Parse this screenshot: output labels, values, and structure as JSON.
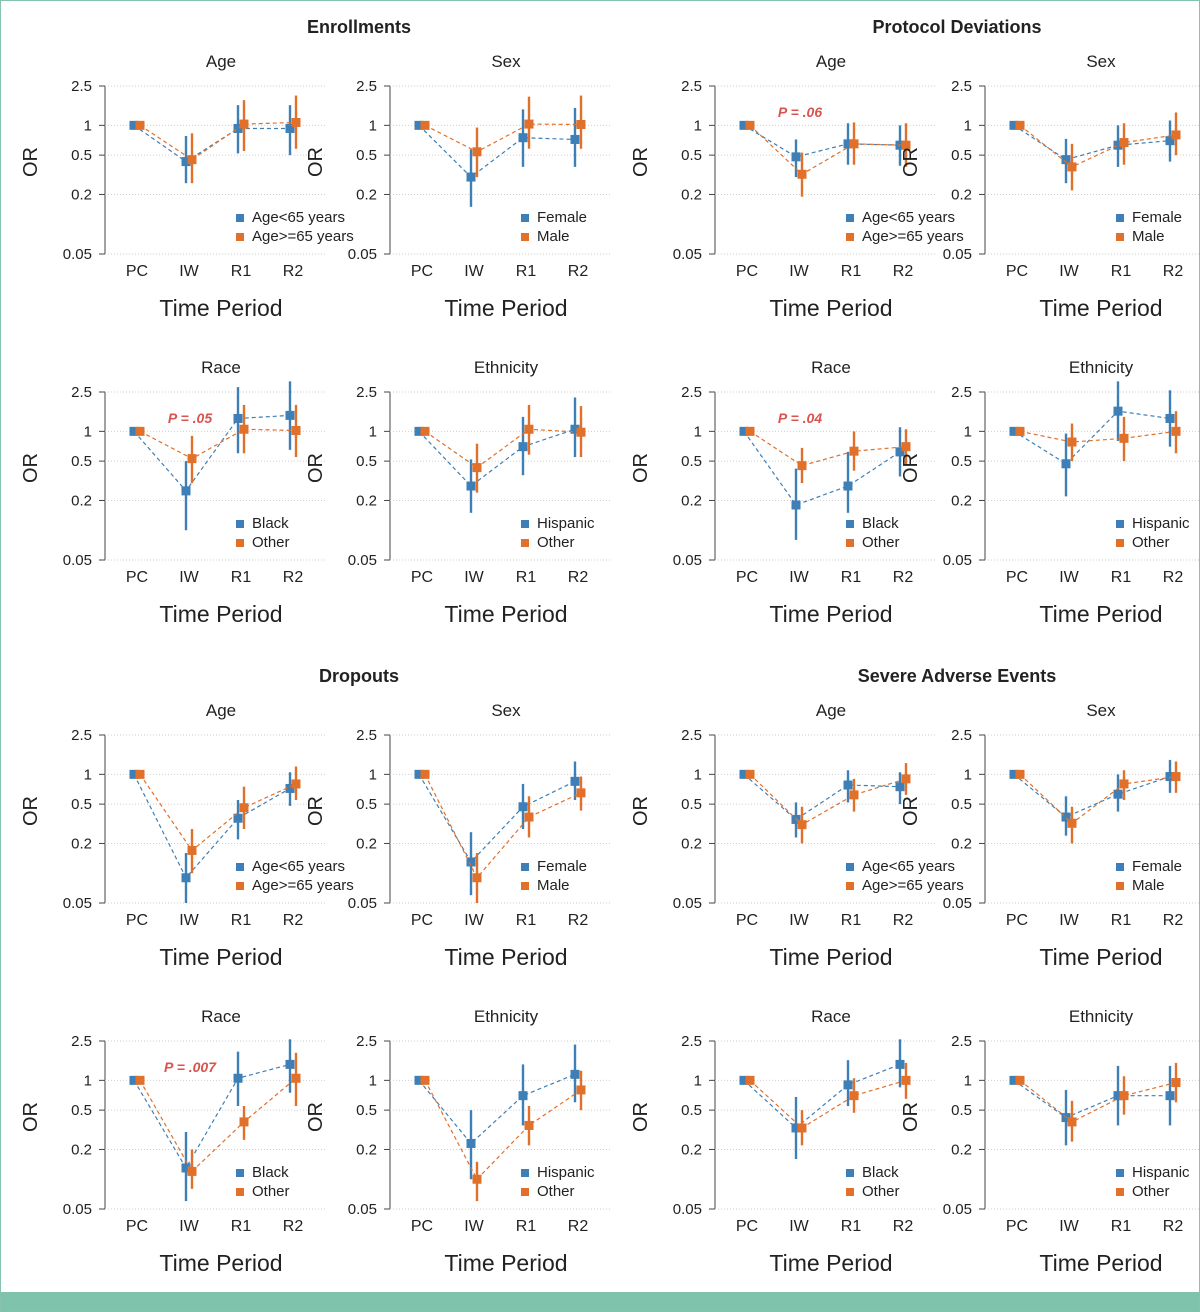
{
  "colors": {
    "series1": "#3d7fb6",
    "series2": "#e0702a",
    "pvalue": "#d9534f",
    "axis": "#444444",
    "grid": "#cfcfcf",
    "frame": "#86c2ae",
    "bottom_bar": "#7fc3ad"
  },
  "axis_text": {
    "ylabel": "OR",
    "xlabel": "Time Period",
    "yticks": [
      "2.5",
      "1",
      "0.5",
      "0.2",
      "0.05"
    ],
    "ytick_values": [
      2.5,
      1,
      0.5,
      0.2,
      0.05
    ],
    "xticks": [
      "PC",
      "IW",
      "R1",
      "R2"
    ]
  },
  "section_titles": [
    "Enrollments",
    "Protocol Deviations",
    "Dropouts",
    "Severe Adverse Events"
  ],
  "chart_data": [
    {
      "type": "scatter",
      "section": "Enrollments",
      "title": "Age",
      "ylim": [
        0.05,
        2.5
      ],
      "yscale": "log",
      "grid": true,
      "legend": "bottom-right",
      "categories": [
        "PC",
        "IW",
        "R1",
        "R2"
      ],
      "series": [
        {
          "name": "Age<65 years",
          "values": [
            1.0,
            0.43,
            0.93,
            0.93
          ],
          "lower": [
            1.0,
            0.26,
            0.52,
            0.5
          ],
          "upper": [
            1.0,
            0.78,
            1.6,
            1.6
          ]
        },
        {
          "name": "Age>=65 years",
          "values": [
            1.0,
            0.45,
            1.03,
            1.07
          ],
          "lower": [
            1.0,
            0.26,
            0.55,
            0.58
          ],
          "upper": [
            1.0,
            0.83,
            1.8,
            2.0
          ]
        }
      ]
    },
    {
      "type": "scatter",
      "section": "Enrollments",
      "title": "Sex",
      "ylim": [
        0.05,
        2.5
      ],
      "yscale": "log",
      "grid": true,
      "legend": "bottom-right",
      "categories": [
        "PC",
        "IW",
        "R1",
        "R2"
      ],
      "series": [
        {
          "name": "Female",
          "values": [
            1.0,
            0.3,
            0.75,
            0.72
          ],
          "lower": [
            1.0,
            0.15,
            0.38,
            0.38
          ],
          "upper": [
            1.0,
            0.57,
            1.45,
            1.5
          ]
        },
        {
          "name": "Male",
          "values": [
            1.0,
            0.54,
            1.03,
            1.02
          ],
          "lower": [
            1.0,
            0.3,
            0.58,
            0.58
          ],
          "upper": [
            1.0,
            0.95,
            1.95,
            2.0
          ]
        }
      ]
    },
    {
      "type": "scatter",
      "section": "Protocol Deviations",
      "title": "Age",
      "ylim": [
        0.05,
        2.5
      ],
      "yscale": "log",
      "grid": true,
      "legend": "bottom-right",
      "categories": [
        "PC",
        "IW",
        "R1",
        "R2"
      ],
      "annotation": "P = .06",
      "series": [
        {
          "name": "Age<65 years",
          "values": [
            1.0,
            0.48,
            0.65,
            0.63
          ],
          "lower": [
            1.0,
            0.3,
            0.4,
            0.39
          ],
          "upper": [
            1.0,
            0.72,
            1.05,
            1.0
          ]
        },
        {
          "name": "Age>=65 years",
          "values": [
            1.0,
            0.32,
            0.65,
            0.63
          ],
          "lower": [
            1.0,
            0.19,
            0.4,
            0.38
          ],
          "upper": [
            1.0,
            0.53,
            1.07,
            1.05
          ]
        }
      ]
    },
    {
      "type": "scatter",
      "section": "Protocol Deviations",
      "title": "Sex",
      "ylim": [
        0.05,
        2.5
      ],
      "yscale": "log",
      "grid": true,
      "legend": "bottom-right",
      "categories": [
        "PC",
        "IW",
        "R1",
        "R2"
      ],
      "series": [
        {
          "name": "Female",
          "values": [
            1.0,
            0.45,
            0.63,
            0.7
          ],
          "lower": [
            1.0,
            0.26,
            0.38,
            0.43
          ],
          "upper": [
            1.0,
            0.73,
            1.0,
            1.12
          ]
        },
        {
          "name": "Male",
          "values": [
            1.0,
            0.38,
            0.67,
            0.8
          ],
          "lower": [
            1.0,
            0.22,
            0.4,
            0.5
          ],
          "upper": [
            1.0,
            0.65,
            1.05,
            1.35
          ]
        }
      ]
    },
    {
      "type": "scatter",
      "section": "Enrollments",
      "title": "Race",
      "ylim": [
        0.05,
        2.5
      ],
      "yscale": "log",
      "grid": true,
      "legend": "bottom-right",
      "categories": [
        "PC",
        "IW",
        "R1",
        "R2"
      ],
      "annotation": "P = .05",
      "series": [
        {
          "name": "Black",
          "values": [
            1.0,
            0.25,
            1.35,
            1.45
          ],
          "lower": [
            1.0,
            0.1,
            0.6,
            0.65
          ],
          "upper": [
            1.0,
            0.5,
            2.8,
            3.2
          ]
        },
        {
          "name": "Other",
          "values": [
            1.0,
            0.53,
            1.05,
            1.02
          ],
          "lower": [
            1.0,
            0.3,
            0.6,
            0.55
          ],
          "upper": [
            1.0,
            0.9,
            1.85,
            1.85
          ]
        }
      ]
    },
    {
      "type": "scatter",
      "section": "Enrollments",
      "title": "Ethnicity",
      "ylim": [
        0.05,
        2.5
      ],
      "yscale": "log",
      "grid": true,
      "legend": "bottom-right",
      "categories": [
        "PC",
        "IW",
        "R1",
        "R2"
      ],
      "series": [
        {
          "name": "Hispanic",
          "values": [
            1.0,
            0.28,
            0.7,
            1.05
          ],
          "lower": [
            1.0,
            0.15,
            0.36,
            0.55
          ],
          "upper": [
            1.0,
            0.52,
            1.4,
            2.2
          ]
        },
        {
          "name": "Other",
          "values": [
            1.0,
            0.43,
            1.05,
            0.98
          ],
          "lower": [
            1.0,
            0.24,
            0.58,
            0.55
          ],
          "upper": [
            1.0,
            0.75,
            1.85,
            1.8
          ]
        }
      ]
    },
    {
      "type": "scatter",
      "section": "Protocol Deviations",
      "title": "Race",
      "ylim": [
        0.05,
        2.5
      ],
      "yscale": "log",
      "grid": true,
      "legend": "bottom-right",
      "categories": [
        "PC",
        "IW",
        "R1",
        "R2"
      ],
      "annotation": "P = .04",
      "series": [
        {
          "name": "Black",
          "values": [
            1.0,
            0.18,
            0.28,
            0.62
          ],
          "lower": [
            1.0,
            0.08,
            0.15,
            0.35
          ],
          "upper": [
            1.0,
            0.42,
            0.62,
            1.1
          ]
        },
        {
          "name": "Other",
          "values": [
            1.0,
            0.45,
            0.63,
            0.7
          ],
          "lower": [
            1.0,
            0.3,
            0.4,
            0.45
          ],
          "upper": [
            1.0,
            0.68,
            1.0,
            1.05
          ]
        }
      ]
    },
    {
      "type": "scatter",
      "section": "Protocol Deviations",
      "title": "Ethnicity",
      "ylim": [
        0.05,
        2.5
      ],
      "yscale": "log",
      "grid": true,
      "legend": "bottom-right",
      "categories": [
        "PC",
        "IW",
        "R1",
        "R2"
      ],
      "series": [
        {
          "name": "Hispanic",
          "values": [
            1.0,
            0.47,
            1.6,
            1.35
          ],
          "lower": [
            1.0,
            0.22,
            0.8,
            0.7
          ],
          "upper": [
            1.0,
            0.95,
            3.2,
            2.6
          ]
        },
        {
          "name": "Other",
          "values": [
            1.0,
            0.78,
            0.85,
            1.0
          ],
          "lower": [
            1.0,
            0.5,
            0.5,
            0.6
          ],
          "upper": [
            1.0,
            1.2,
            1.4,
            1.6
          ]
        }
      ]
    },
    {
      "type": "scatter",
      "section": "Dropouts",
      "title": "Age",
      "ylim": [
        0.05,
        2.5
      ],
      "yscale": "log",
      "grid": true,
      "legend": "bottom-right",
      "categories": [
        "PC",
        "IW",
        "R1",
        "R2"
      ],
      "series": [
        {
          "name": "Age<65 years",
          "values": [
            1.0,
            0.09,
            0.36,
            0.72
          ],
          "lower": [
            1.0,
            0.05,
            0.22,
            0.48
          ],
          "upper": [
            1.0,
            0.16,
            0.55,
            1.05
          ]
        },
        {
          "name": "Age>=65 years",
          "values": [
            1.0,
            0.17,
            0.46,
            0.8
          ],
          "lower": [
            1.0,
            0.1,
            0.28,
            0.55
          ],
          "upper": [
            1.0,
            0.28,
            0.75,
            1.2
          ]
        }
      ]
    },
    {
      "type": "scatter",
      "section": "Dropouts",
      "title": "Sex",
      "ylim": [
        0.05,
        2.5
      ],
      "yscale": "log",
      "grid": true,
      "legend": "bottom-right",
      "categories": [
        "PC",
        "IW",
        "R1",
        "R2"
      ],
      "series": [
        {
          "name": "Female",
          "values": [
            1.0,
            0.13,
            0.47,
            0.85
          ],
          "lower": [
            1.0,
            0.06,
            0.28,
            0.55
          ],
          "upper": [
            1.0,
            0.26,
            0.8,
            1.35
          ]
        },
        {
          "name": "Male",
          "values": [
            1.0,
            0.09,
            0.37,
            0.65
          ],
          "lower": [
            1.0,
            0.05,
            0.23,
            0.43
          ],
          "upper": [
            1.0,
            0.16,
            0.6,
            0.95
          ]
        }
      ]
    },
    {
      "type": "scatter",
      "section": "Severe Adverse Events",
      "title": "Age",
      "ylim": [
        0.05,
        2.5
      ],
      "yscale": "log",
      "grid": true,
      "legend": "bottom-right",
      "categories": [
        "PC",
        "IW",
        "R1",
        "R2"
      ],
      "series": [
        {
          "name": "Age<65 years",
          "values": [
            1.0,
            0.35,
            0.78,
            0.75
          ],
          "lower": [
            1.0,
            0.23,
            0.52,
            0.5
          ],
          "upper": [
            1.0,
            0.52,
            1.1,
            1.05
          ]
        },
        {
          "name": "Age>=65 years",
          "values": [
            1.0,
            0.31,
            0.62,
            0.9
          ],
          "lower": [
            1.0,
            0.2,
            0.42,
            0.62
          ],
          "upper": [
            1.0,
            0.47,
            0.9,
            1.3
          ]
        }
      ]
    },
    {
      "type": "scatter",
      "section": "Severe Adverse Events",
      "title": "Sex",
      "ylim": [
        0.05,
        2.5
      ],
      "yscale": "log",
      "grid": true,
      "legend": "bottom-right",
      "categories": [
        "PC",
        "IW",
        "R1",
        "R2"
      ],
      "series": [
        {
          "name": "Female",
          "values": [
            1.0,
            0.37,
            0.63,
            0.95
          ],
          "lower": [
            1.0,
            0.24,
            0.42,
            0.65
          ],
          "upper": [
            1.0,
            0.6,
            1.0,
            1.4
          ]
        },
        {
          "name": "Male",
          "values": [
            1.0,
            0.32,
            0.8,
            0.95
          ],
          "lower": [
            1.0,
            0.2,
            0.55,
            0.65
          ],
          "upper": [
            1.0,
            0.47,
            1.1,
            1.35
          ]
        }
      ]
    },
    {
      "type": "scatter",
      "section": "Dropouts",
      "title": "Race",
      "ylim": [
        0.05,
        2.5
      ],
      "yscale": "log",
      "grid": true,
      "legend": "bottom-right",
      "categories": [
        "PC",
        "IW",
        "R1",
        "R2"
      ],
      "annotation": "P = .007",
      "series": [
        {
          "name": "Black",
          "values": [
            1.0,
            0.13,
            1.05,
            1.45
          ],
          "lower": [
            1.0,
            0.06,
            0.55,
            0.75
          ],
          "upper": [
            1.0,
            0.3,
            1.95,
            2.6
          ]
        },
        {
          "name": "Other",
          "values": [
            1.0,
            0.12,
            0.38,
            1.05
          ],
          "lower": [
            1.0,
            0.08,
            0.25,
            0.55
          ],
          "upper": [
            1.0,
            0.2,
            0.55,
            1.9
          ]
        }
      ]
    },
    {
      "type": "scatter",
      "section": "Dropouts",
      "title": "Ethnicity",
      "ylim": [
        0.05,
        2.5
      ],
      "yscale": "log",
      "grid": true,
      "legend": "bottom-right",
      "categories": [
        "PC",
        "IW",
        "R1",
        "R2"
      ],
      "series": [
        {
          "name": "Hispanic",
          "values": [
            1.0,
            0.23,
            0.7,
            1.15
          ],
          "lower": [
            1.0,
            0.1,
            0.35,
            0.6
          ],
          "upper": [
            1.0,
            0.5,
            1.45,
            2.3
          ]
        },
        {
          "name": "Other",
          "values": [
            1.0,
            0.1,
            0.35,
            0.8
          ],
          "lower": [
            1.0,
            0.06,
            0.22,
            0.5
          ],
          "upper": [
            1.0,
            0.15,
            0.55,
            1.25
          ]
        }
      ]
    },
    {
      "type": "scatter",
      "section": "Severe Adverse Events",
      "title": "Race",
      "ylim": [
        0.05,
        2.5
      ],
      "yscale": "log",
      "grid": true,
      "legend": "bottom-right",
      "categories": [
        "PC",
        "IW",
        "R1",
        "R2"
      ],
      "series": [
        {
          "name": "Black",
          "values": [
            1.0,
            0.33,
            0.9,
            1.45
          ],
          "lower": [
            1.0,
            0.16,
            0.55,
            0.85
          ],
          "upper": [
            1.0,
            0.68,
            1.6,
            2.6
          ]
        },
        {
          "name": "Other",
          "values": [
            1.0,
            0.33,
            0.7,
            1.0
          ],
          "lower": [
            1.0,
            0.22,
            0.47,
            0.65
          ],
          "upper": [
            1.0,
            0.5,
            1.05,
            1.5
          ]
        }
      ]
    },
    {
      "type": "scatter",
      "section": "Severe Adverse Events",
      "title": "Ethnicity",
      "ylim": [
        0.05,
        2.5
      ],
      "yscale": "log",
      "grid": true,
      "legend": "bottom-right",
      "categories": [
        "PC",
        "IW",
        "R1",
        "R2"
      ],
      "series": [
        {
          "name": "Hispanic",
          "values": [
            1.0,
            0.42,
            0.7,
            0.7
          ],
          "lower": [
            1.0,
            0.22,
            0.35,
            0.35
          ],
          "upper": [
            1.0,
            0.8,
            1.4,
            1.4
          ]
        },
        {
          "name": "Other",
          "values": [
            1.0,
            0.38,
            0.7,
            0.95
          ],
          "lower": [
            1.0,
            0.24,
            0.45,
            0.6
          ],
          "upper": [
            1.0,
            0.62,
            1.1,
            1.5
          ]
        }
      ]
    }
  ]
}
